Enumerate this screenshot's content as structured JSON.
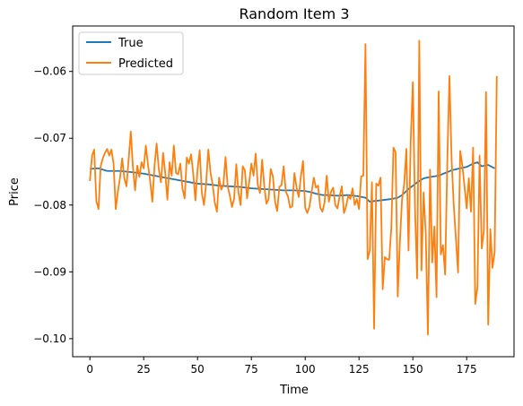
{
  "chart_data": {
    "type": "line",
    "title": "Random Item 3",
    "xlabel": "Time",
    "ylabel": "Price",
    "xlim": [
      -8,
      197
    ],
    "ylim": [
      -0.1027,
      -0.0532
    ],
    "x_ticks": [
      0,
      25,
      50,
      75,
      100,
      125,
      150,
      175
    ],
    "x_tick_labels": [
      "0",
      "25",
      "50",
      "75",
      "100",
      "125",
      "150",
      "175"
    ],
    "y_ticks": [
      -0.1,
      -0.09,
      -0.08,
      -0.07,
      -0.06
    ],
    "y_tick_labels": [
      "−0.10",
      "−0.09",
      "−0.08",
      "−0.07",
      "−0.06"
    ],
    "grid": false,
    "legend_position": "top-left",
    "series": [
      {
        "name": "True",
        "color": "#1f77b4",
        "points": [
          [
            0,
            -0.0746
          ],
          [
            4,
            -0.0745
          ],
          [
            6,
            -0.0747
          ],
          [
            8,
            -0.0749
          ],
          [
            14,
            -0.0749
          ],
          [
            20,
            -0.0751
          ],
          [
            25,
            -0.0753
          ],
          [
            30,
            -0.0756
          ],
          [
            35,
            -0.0759
          ],
          [
            40,
            -0.0762
          ],
          [
            45,
            -0.0765
          ],
          [
            50,
            -0.0768
          ],
          [
            55,
            -0.0769
          ],
          [
            60,
            -0.0771
          ],
          [
            65,
            -0.0772
          ],
          [
            70,
            -0.0773
          ],
          [
            75,
            -0.0775
          ],
          [
            80,
            -0.0776
          ],
          [
            85,
            -0.0777
          ],
          [
            90,
            -0.0778
          ],
          [
            95,
            -0.0778
          ],
          [
            100,
            -0.0779
          ],
          [
            103,
            -0.0781
          ],
          [
            105,
            -0.0783
          ],
          [
            108,
            -0.0785
          ],
          [
            110,
            -0.0785
          ],
          [
            115,
            -0.0786
          ],
          [
            120,
            -0.0785
          ],
          [
            125,
            -0.0787
          ],
          [
            128,
            -0.0789
          ],
          [
            130,
            -0.0795
          ],
          [
            132,
            -0.0794
          ],
          [
            135,
            -0.0793
          ],
          [
            140,
            -0.0791
          ],
          [
            143,
            -0.0789
          ],
          [
            145,
            -0.0785
          ],
          [
            148,
            -0.0776
          ],
          [
            150,
            -0.0771
          ],
          [
            152,
            -0.0766
          ],
          [
            155,
            -0.076
          ],
          [
            158,
            -0.0758
          ],
          [
            162,
            -0.0756
          ],
          [
            165,
            -0.0752
          ],
          [
            168,
            -0.0748
          ],
          [
            172,
            -0.0745
          ],
          [
            175,
            -0.0743
          ],
          [
            178,
            -0.0738
          ],
          [
            180,
            -0.0736
          ],
          [
            182,
            -0.0742
          ],
          [
            185,
            -0.074
          ],
          [
            188,
            -0.0745
          ]
        ]
      },
      {
        "name": "Predicted",
        "color": "#ff7f0e",
        "points": [
          [
            0,
            -0.0764
          ],
          [
            1,
            -0.0726
          ],
          [
            2,
            -0.0717
          ],
          [
            3,
            -0.0794
          ],
          [
            4,
            -0.0806
          ],
          [
            5,
            -0.0742
          ],
          [
            6,
            -0.073
          ],
          [
            7,
            -0.0722
          ],
          [
            8,
            -0.0716
          ],
          [
            9,
            -0.0726
          ],
          [
            10,
            -0.0717
          ],
          [
            11,
            -0.0738
          ],
          [
            12,
            -0.0806
          ],
          [
            13,
            -0.078
          ],
          [
            14,
            -0.0759
          ],
          [
            15,
            -0.073
          ],
          [
            16,
            -0.076
          ],
          [
            17,
            -0.0772
          ],
          [
            18,
            -0.0732
          ],
          [
            19,
            -0.069
          ],
          [
            20,
            -0.0744
          ],
          [
            21,
            -0.0778
          ],
          [
            22,
            -0.0741
          ],
          [
            23,
            -0.0758
          ],
          [
            24,
            -0.0736
          ],
          [
            25,
            -0.0745
          ],
          [
            26,
            -0.0711
          ],
          [
            27,
            -0.074
          ],
          [
            28,
            -0.0764
          ],
          [
            29,
            -0.0795
          ],
          [
            30,
            -0.0742
          ],
          [
            31,
            -0.0708
          ],
          [
            32,
            -0.0746
          ],
          [
            33,
            -0.0766
          ],
          [
            34,
            -0.0722
          ],
          [
            35,
            -0.0752
          ],
          [
            36,
            -0.0792
          ],
          [
            37,
            -0.0736
          ],
          [
            38,
            -0.0756
          ],
          [
            39,
            -0.0711
          ],
          [
            40,
            -0.0752
          ],
          [
            41,
            -0.0754
          ],
          [
            42,
            -0.0738
          ],
          [
            43,
            -0.0775
          ],
          [
            44,
            -0.079
          ],
          [
            45,
            -0.0729
          ],
          [
            46,
            -0.0738
          ],
          [
            47,
            -0.0724
          ],
          [
            48,
            -0.0753
          ],
          [
            49,
            -0.0793
          ],
          [
            50,
            -0.0747
          ],
          [
            51,
            -0.0718
          ],
          [
            52,
            -0.0782
          ],
          [
            53,
            -0.08
          ],
          [
            54,
            -0.0767
          ],
          [
            55,
            -0.0717
          ],
          [
            56,
            -0.0751
          ],
          [
            57,
            -0.0769
          ],
          [
            58,
            -0.0796
          ],
          [
            59,
            -0.081
          ],
          [
            60,
            -0.0759
          ],
          [
            61,
            -0.0777
          ],
          [
            62,
            -0.077
          ],
          [
            63,
            -0.0728
          ],
          [
            64,
            -0.0772
          ],
          [
            65,
            -0.0786
          ],
          [
            66,
            -0.0803
          ],
          [
            67,
            -0.079
          ],
          [
            68,
            -0.0739
          ],
          [
            69,
            -0.0781
          ],
          [
            70,
            -0.08
          ],
          [
            71,
            -0.0742
          ],
          [
            72,
            -0.0748
          ],
          [
            73,
            -0.079
          ],
          [
            74,
            -0.0765
          ],
          [
            75,
            -0.0738
          ],
          [
            76,
            -0.0756
          ],
          [
            77,
            -0.0723
          ],
          [
            78,
            -0.077
          ],
          [
            79,
            -0.0782
          ],
          [
            80,
            -0.0732
          ],
          [
            81,
            -0.0772
          ],
          [
            82,
            -0.0798
          ],
          [
            83,
            -0.0791
          ],
          [
            84,
            -0.0746
          ],
          [
            85,
            -0.0757
          ],
          [
            86,
            -0.0795
          ],
          [
            87,
            -0.0809
          ],
          [
            88,
            -0.0773
          ],
          [
            89,
            -0.077
          ],
          [
            90,
            -0.0742
          ],
          [
            91,
            -0.078
          ],
          [
            92,
            -0.0787
          ],
          [
            93,
            -0.0804
          ],
          [
            94,
            -0.0802
          ],
          [
            95,
            -0.0752
          ],
          [
            96,
            -0.0774
          ],
          [
            97,
            -0.0788
          ],
          [
            98,
            -0.0757
          ],
          [
            99,
            -0.0734
          ],
          [
            100,
            -0.0804
          ],
          [
            101,
            -0.0812
          ],
          [
            102,
            -0.0802
          ],
          [
            103,
            -0.078
          ],
          [
            104,
            -0.0759
          ],
          [
            105,
            -0.0774
          ],
          [
            106,
            -0.0771
          ],
          [
            107,
            -0.0804
          ],
          [
            108,
            -0.081
          ],
          [
            109,
            -0.0796
          ],
          [
            110,
            -0.0756
          ],
          [
            111,
            -0.0795
          ],
          [
            112,
            -0.078
          ],
          [
            113,
            -0.0774
          ],
          [
            114,
            -0.08
          ],
          [
            115,
            -0.0805
          ],
          [
            116,
            -0.0787
          ],
          [
            117,
            -0.0772
          ],
          [
            118,
            -0.0812
          ],
          [
            119,
            -0.0802
          ],
          [
            120,
            -0.0786
          ],
          [
            121,
            -0.0791
          ],
          [
            122,
            -0.0775
          ],
          [
            123,
            -0.08
          ],
          [
            124,
            -0.0791
          ],
          [
            125,
            -0.0806
          ],
          [
            126,
            -0.0757
          ],
          [
            127,
            -0.0756
          ],
          [
            128,
            -0.0559
          ],
          [
            129,
            -0.0881
          ],
          [
            130,
            -0.0868
          ],
          [
            131,
            -0.0766
          ],
          [
            132,
            -0.0985
          ],
          [
            133,
            -0.0768
          ],
          [
            134,
            -0.0771
          ],
          [
            135,
            -0.0759
          ],
          [
            136,
            -0.0926
          ],
          [
            137,
            -0.0878
          ],
          [
            138,
            -0.0881
          ],
          [
            139,
            -0.0882
          ],
          [
            140,
            -0.0835
          ],
          [
            141,
            -0.0714
          ],
          [
            142,
            -0.0721
          ],
          [
            143,
            -0.0937
          ],
          [
            144,
            -0.0854
          ],
          [
            145,
            -0.0791
          ],
          [
            146,
            -0.0768
          ],
          [
            147,
            -0.0716
          ],
          [
            148,
            -0.0868
          ],
          [
            149,
            -0.0705
          ],
          [
            150,
            -0.0616
          ],
          [
            151,
            -0.0805
          ],
          [
            152,
            -0.091
          ],
          [
            153,
            -0.0554
          ],
          [
            154,
            -0.0898
          ],
          [
            155,
            -0.0781
          ],
          [
            156,
            -0.0843
          ],
          [
            157,
            -0.0994
          ],
          [
            158,
            -0.0747
          ],
          [
            159,
            -0.0886
          ],
          [
            160,
            -0.0832
          ],
          [
            161,
            -0.0938
          ],
          [
            162,
            -0.063
          ],
          [
            163,
            -0.0874
          ],
          [
            164,
            -0.086
          ],
          [
            165,
            -0.0904
          ],
          [
            166,
            -0.0736
          ],
          [
            167,
            -0.0607
          ],
          [
            168,
            -0.0732
          ],
          [
            169,
            -0.08
          ],
          [
            170,
            -0.085
          ],
          [
            171,
            -0.0901
          ],
          [
            172,
            -0.0719
          ],
          [
            173,
            -0.0741
          ],
          [
            174,
            -0.0772
          ],
          [
            175,
            -0.0805
          ],
          [
            176,
            -0.076
          ],
          [
            177,
            -0.081
          ],
          [
            178,
            -0.0714
          ],
          [
            179,
            -0.0948
          ],
          [
            180,
            -0.0923
          ],
          [
            181,
            -0.0726
          ],
          [
            182,
            -0.0865
          ],
          [
            183,
            -0.0838
          ],
          [
            184,
            -0.0631
          ],
          [
            185,
            -0.0979
          ],
          [
            186,
            -0.0836
          ],
          [
            187,
            -0.0894
          ],
          [
            188,
            -0.087
          ],
          [
            189,
            -0.0607
          ]
        ]
      }
    ]
  }
}
